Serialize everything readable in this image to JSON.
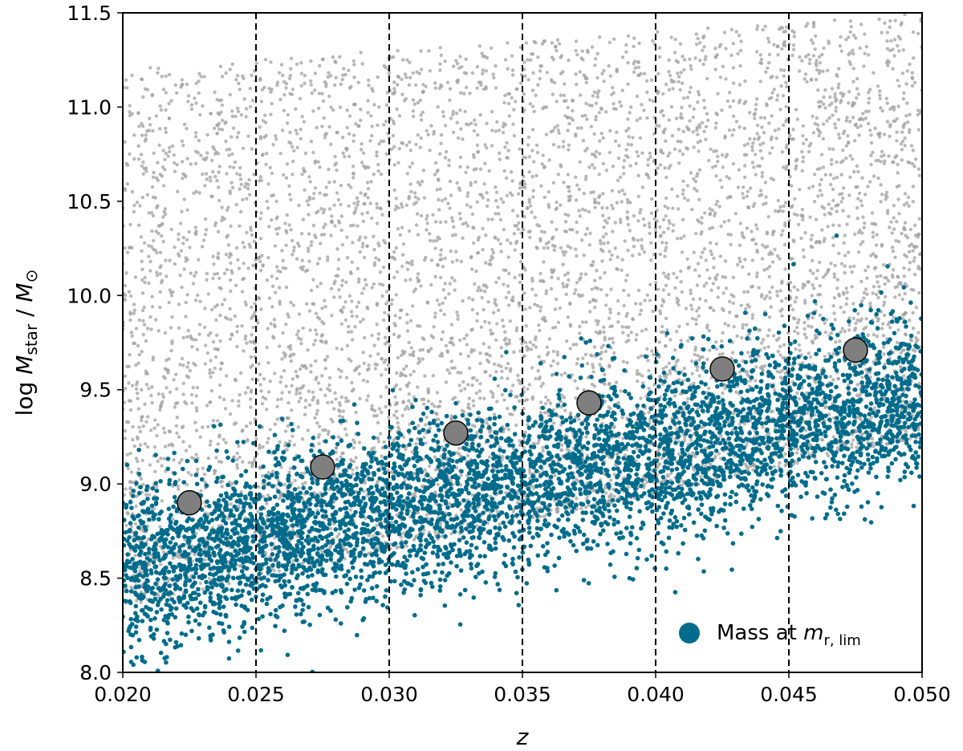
{
  "chart_data": {
    "type": "scatter",
    "xlabel": "z",
    "ylabel": "log M_star / M_⊙",
    "xlim": [
      0.02,
      0.05
    ],
    "ylim": [
      8.0,
      11.5
    ],
    "x_ticks": [
      "0.020",
      "0.025",
      "0.030",
      "0.035",
      "0.040",
      "0.045",
      "0.050"
    ],
    "y_ticks": [
      "8.0",
      "8.5",
      "9.0",
      "9.5",
      "10.0",
      "10.5",
      "11.0",
      "11.5"
    ],
    "bin_edges": [
      0.025,
      0.03,
      0.035,
      0.04,
      0.045
    ],
    "series": [
      {
        "color": "#a0a0a0",
        "description": "galaxy stellar masses (dense cloud)",
        "lower_envelope": {
          "x": [
            0.02,
            0.05
          ],
          "y": [
            8.1,
            9.0
          ]
        },
        "upper_envelope": {
          "x": [
            0.02,
            0.05
          ],
          "y": [
            11.2,
            11.5
          ]
        }
      },
      {
        "name": "Mass at m_{r,lim}",
        "color": "#006c8c",
        "trend": {
          "x": [
            0.02,
            0.05
          ],
          "y": [
            8.55,
            9.45
          ]
        },
        "spread": 0.3
      },
      {
        "color": "#7f7f7f",
        "description": "binned limiting mass",
        "x": [
          0.0225,
          0.0275,
          0.0325,
          0.0375,
          0.0425,
          0.0475
        ],
        "y": [
          8.9,
          9.09,
          9.27,
          9.43,
          9.61,
          9.71
        ]
      }
    ],
    "legend": {
      "position": "lower-right",
      "label_prefix": "Mass at ",
      "label_math": "m",
      "label_sub": "r, lim"
    },
    "grid": false
  }
}
